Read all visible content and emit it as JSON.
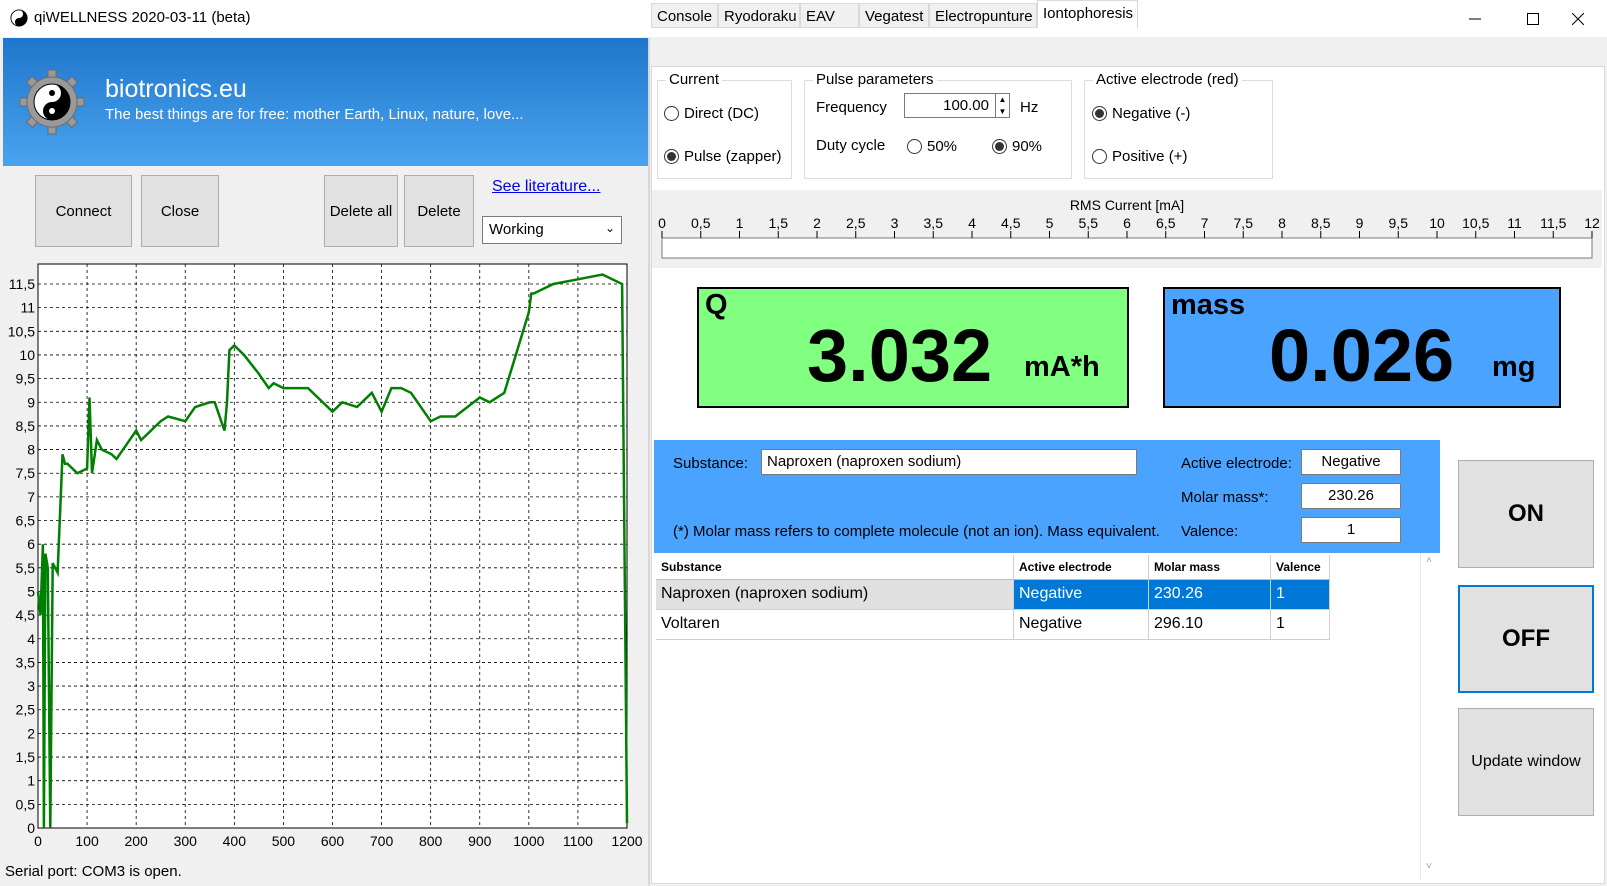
{
  "window": {
    "title": "qiWELLNESS   2020-03-11 (beta)",
    "minimize_icon": "minimize-icon",
    "maximize_icon": "maximize-icon",
    "close_icon": "close-icon"
  },
  "banner": {
    "site": "biotronics.eu",
    "motto": "The best things are for free: mother Earth, Linux, nature, love..."
  },
  "toolbar": {
    "connect": "Connect",
    "close": "Close",
    "delete_all": "Delete all",
    "delete": "Delete",
    "literature_link": "See literature...",
    "mode_value": "Working"
  },
  "chart_data": {
    "type": "line",
    "xlim": [
      0,
      1200
    ],
    "ylim": [
      0,
      11.5
    ],
    "x_ticks": [
      "0",
      "100",
      "200",
      "300",
      "400",
      "500",
      "600",
      "700",
      "800",
      "900",
      "1000",
      "1100",
      "1200"
    ],
    "y_ticks": [
      "0",
      "0,5",
      "1",
      "1,5",
      "2",
      "2,5",
      "3",
      "3,5",
      "4",
      "4,5",
      "5",
      "5,5",
      "6",
      "6,5",
      "7",
      "7,5",
      "8",
      "8,5",
      "9",
      "9,5",
      "10",
      "10,5",
      "11",
      "11,5"
    ],
    "grid": true,
    "color": "#008000",
    "series": [
      {
        "x": [
          0,
          5,
          10,
          12,
          15,
          20,
          25,
          30,
          40,
          50,
          55,
          60,
          70,
          80,
          100,
          105,
          110,
          120,
          130,
          150,
          160,
          200,
          210,
          250,
          265,
          300,
          320,
          350,
          360,
          380,
          385,
          390,
          400,
          420,
          450,
          470,
          480,
          500,
          550,
          600,
          620,
          650,
          680,
          700,
          720,
          740,
          760,
          800,
          820,
          850,
          900,
          920,
          950,
          1000,
          1005,
          1010,
          1050,
          1100,
          1150,
          1190,
          1200
        ],
        "y": [
          5,
          4.5,
          6,
          0,
          5.8,
          5.5,
          0,
          5.6,
          5.4,
          7.9,
          7.7,
          7.7,
          7.6,
          7.5,
          7.6,
          9.1,
          7.5,
          8.2,
          8,
          7.9,
          7.8,
          8.4,
          8.2,
          8.6,
          8.7,
          8.6,
          8.9,
          9,
          9,
          8.4,
          9,
          10.1,
          10.2,
          10,
          9.6,
          9.3,
          9.4,
          9.3,
          9.3,
          8.8,
          9,
          8.9,
          9.2,
          8.8,
          9.3,
          9.3,
          9.2,
          8.6,
          8.7,
          8.7,
          9.1,
          9,
          9.2,
          10.9,
          11.3,
          11.3,
          11.5,
          11.6,
          11.7,
          11.5,
          0.1
        ]
      }
    ]
  },
  "status": "Serial port: COM3 is open.",
  "tabs": [
    {
      "label": "Console"
    },
    {
      "label": "Ryodoraku"
    },
    {
      "label": "EAV"
    },
    {
      "label": "Vegatest"
    },
    {
      "label": "Electropunture"
    },
    {
      "label": "Iontophoresis"
    }
  ],
  "current_group": {
    "title": "Current",
    "direct": "Direct (DC)",
    "pulse": "Pulse (zapper)",
    "selected": "pulse"
  },
  "pulse_group": {
    "title": "Pulse parameters",
    "frequency_label": "Frequency",
    "frequency_value": "100.00",
    "frequency_unit": "Hz",
    "duty_label": "Duty cycle",
    "duty_50": "50%",
    "duty_90": "90%",
    "duty_selected": "90%"
  },
  "electrode_group": {
    "title": "Active electrode (red)",
    "negative": "Negative (-)",
    "positive": "Positive (+)",
    "selected": "negative"
  },
  "rms": {
    "title": "RMS Current [mA]",
    "ticks": [
      "0",
      "0,5",
      "1",
      "1,5",
      "2",
      "2,5",
      "3",
      "3,5",
      "4",
      "4,5",
      "5",
      "5,5",
      "6",
      "6,5",
      "7",
      "7,5",
      "8",
      "8,5",
      "9",
      "9,5",
      "10",
      "10,5",
      "11",
      "11,5",
      "12"
    ],
    "value": 0
  },
  "q_meter": {
    "label": "Q",
    "value": "3.032",
    "unit": "mA*h",
    "color": "#80ff80"
  },
  "mass_meter": {
    "label": "mass",
    "value": "0.026",
    "unit": "mg",
    "color": "#4aa3ff"
  },
  "substance_panel": {
    "substance_label": "Substance:",
    "substance_value": "Naproxen (naproxen sodium)",
    "electrode_label": "Active electrode:",
    "electrode_value": "Negative",
    "molar_label": "Molar mass*:",
    "molar_value": "230.26",
    "valence_label": "Valence:",
    "valence_value": "1",
    "note": "(*) Molar mass refers to complete molecule (not an ion). Mass equivalent."
  },
  "table": {
    "headers": [
      "Substance",
      "Active electrode",
      "Molar mass",
      "Valence"
    ],
    "rows": [
      [
        "Naproxen (naproxen sodium)",
        "Negative",
        "230.26",
        "1"
      ],
      [
        "Voltaren",
        "Negative",
        "296.10",
        "1"
      ]
    ]
  },
  "buttons": {
    "on": "ON",
    "off": "OFF",
    "update": "Update window"
  }
}
